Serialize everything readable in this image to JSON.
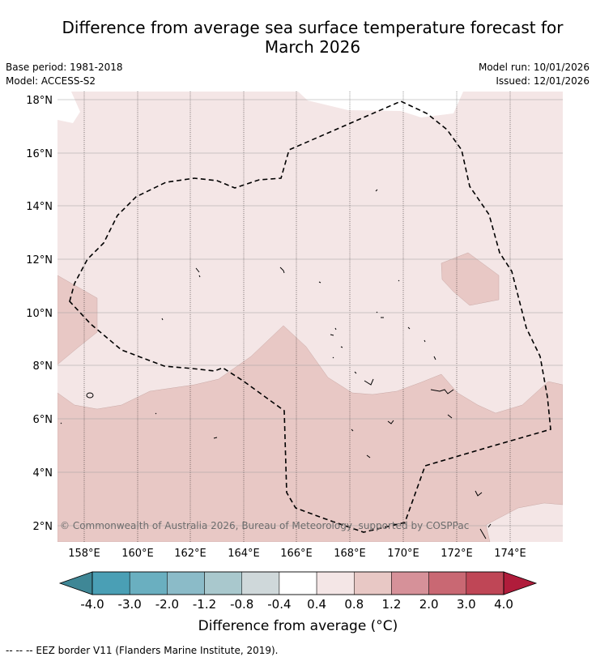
{
  "title_line1": "Difference from average sea surface temperature forecast for",
  "title_line2": "March 2026",
  "base_period": "Base period: 1981-2018",
  "model": "Model: ACCESS-S2",
  "model_run": "Model run: 10/01/2026",
  "issued": "Issued: 12/01/2026",
  "map": {
    "lat_labels": [
      "18°N",
      "16°N",
      "14°N",
      "12°N",
      "10°N",
      "8°N",
      "6°N",
      "4°N",
      "2°N"
    ],
    "lon_labels": [
      "158°E",
      "160°E",
      "162°E",
      "164°E",
      "166°E",
      "168°E",
      "170°E",
      "172°E",
      "174°E"
    ],
    "lat_range": [
      1.5,
      18.2
    ],
    "lon_range": [
      157.0,
      176.0
    ],
    "copyright": "© Commonwealth of Australia 2026, Bureau of Meteorology, supported by COSPPac"
  },
  "colorbar": {
    "tick_labels": [
      "-4.0",
      "-3.0",
      "-2.0",
      "-1.2",
      "-0.8",
      "-0.4",
      "0.4",
      "0.8",
      "1.2",
      "2.0",
      "3.0",
      "4.0"
    ],
    "colors": [
      "#4a9fb5",
      "#6aafc0",
      "#8bbbc8",
      "#a9c8cd",
      "#cfd8da",
      "#ffffff",
      "#f4e6e6",
      "#e8c8c5",
      "#d69199",
      "#c96873",
      "#bf4656"
    ],
    "under_color": "#3f8796",
    "over_color": "#b01c3b",
    "label": "Difference from average (°C)"
  },
  "legend_note": "-- -- -- EEZ border V11 (Flanders Marine Institute, 2019).",
  "field_colors": {
    "light": "#f4e6e6",
    "medium": "#e8c8c5",
    "boundary": "#000000"
  }
}
